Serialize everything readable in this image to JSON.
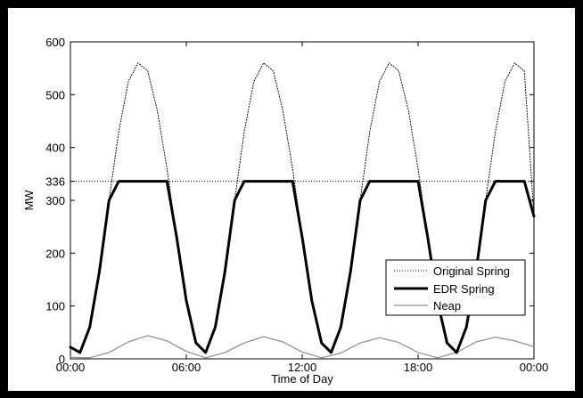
{
  "chart_data": {
    "type": "line",
    "xlabel": "Time of Day",
    "ylabel": "MW",
    "xlim": [
      0,
      24
    ],
    "ylim": [
      0,
      600
    ],
    "x_ticks": [
      0,
      6,
      12,
      18,
      24
    ],
    "x_tick_labels": [
      "00:00",
      "06:00",
      "12:00",
      "18:00",
      "00:00"
    ],
    "y_ticks": [
      0,
      100,
      200,
      300,
      336,
      400,
      500,
      600
    ],
    "y_tick_labels": [
      "0",
      "100",
      "200",
      "300",
      "336",
      "400",
      "500",
      "600"
    ],
    "grid": false,
    "legend_position": "lower-right",
    "reference_line": {
      "y": 336,
      "style": "dotted"
    },
    "series": [
      {
        "name": "Original Spring",
        "style": "dotted",
        "color": "#000000",
        "x": [
          0,
          0.5,
          1.0,
          1.5,
          2.0,
          2.5,
          3.0,
          3.5,
          4.0,
          4.5,
          5.0,
          5.5,
          6.0,
          6.5,
          7.0,
          7.5,
          8.0,
          8.5,
          9.0,
          9.5,
          10.0,
          10.5,
          11.0,
          11.5,
          12.0,
          12.5,
          13.0,
          13.5,
          14.0,
          14.5,
          15.0,
          15.5,
          16.0,
          16.5,
          17.0,
          17.5,
          18.0,
          18.5,
          19.0,
          19.5,
          20.0,
          20.5,
          21.0,
          21.5,
          22.0,
          22.5,
          23.0,
          23.5,
          24.0
        ],
        "values": [
          22,
          12,
          60,
          165,
          300,
          430,
          525,
          560,
          545,
          470,
          360,
          230,
          110,
          30,
          12,
          60,
          165,
          300,
          430,
          525,
          560,
          545,
          470,
          360,
          230,
          110,
          30,
          12,
          60,
          165,
          300,
          430,
          525,
          560,
          545,
          470,
          360,
          230,
          110,
          30,
          12,
          60,
          165,
          300,
          430,
          525,
          560,
          545,
          270
        ]
      },
      {
        "name": "EDR Spring",
        "style": "solid-thick",
        "color": "#000000",
        "x": [
          0,
          0.5,
          1.0,
          1.5,
          2.0,
          2.5,
          3.0,
          3.5,
          4.0,
          4.5,
          5.0,
          5.5,
          6.0,
          6.5,
          7.0,
          7.5,
          8.0,
          8.5,
          9.0,
          9.5,
          10.0,
          10.5,
          11.0,
          11.5,
          12.0,
          12.5,
          13.0,
          13.5,
          14.0,
          14.5,
          15.0,
          15.5,
          16.0,
          16.5,
          17.0,
          17.5,
          18.0,
          18.5,
          19.0,
          19.5,
          20.0,
          20.5,
          21.0,
          21.5,
          22.0,
          22.5,
          23.0,
          23.5,
          24.0
        ],
        "values": [
          22,
          12,
          60,
          165,
          300,
          336,
          336,
          336,
          336,
          336,
          336,
          230,
          110,
          30,
          12,
          60,
          165,
          300,
          336,
          336,
          336,
          336,
          336,
          336,
          230,
          110,
          30,
          12,
          60,
          165,
          300,
          336,
          336,
          336,
          336,
          336,
          336,
          230,
          110,
          30,
          12,
          60,
          165,
          300,
          336,
          336,
          336,
          336,
          270
        ]
      },
      {
        "name": "Neap",
        "style": "solid",
        "color": "#8c8c8c",
        "x": [
          0,
          1.0,
          2.0,
          3.0,
          4.0,
          5.0,
          6.0,
          7.0,
          8.0,
          9.0,
          10.0,
          11.0,
          12.0,
          13.0,
          14.0,
          15.0,
          16.0,
          17.0,
          18.0,
          19.0,
          20.0,
          21.0,
          22.0,
          23.0,
          24.0
        ],
        "values": [
          3,
          2,
          12,
          32,
          44,
          34,
          14,
          2,
          12,
          30,
          42,
          32,
          13,
          2,
          11,
          30,
          40,
          31,
          12,
          2,
          12,
          32,
          41,
          34,
          23
        ]
      }
    ]
  }
}
